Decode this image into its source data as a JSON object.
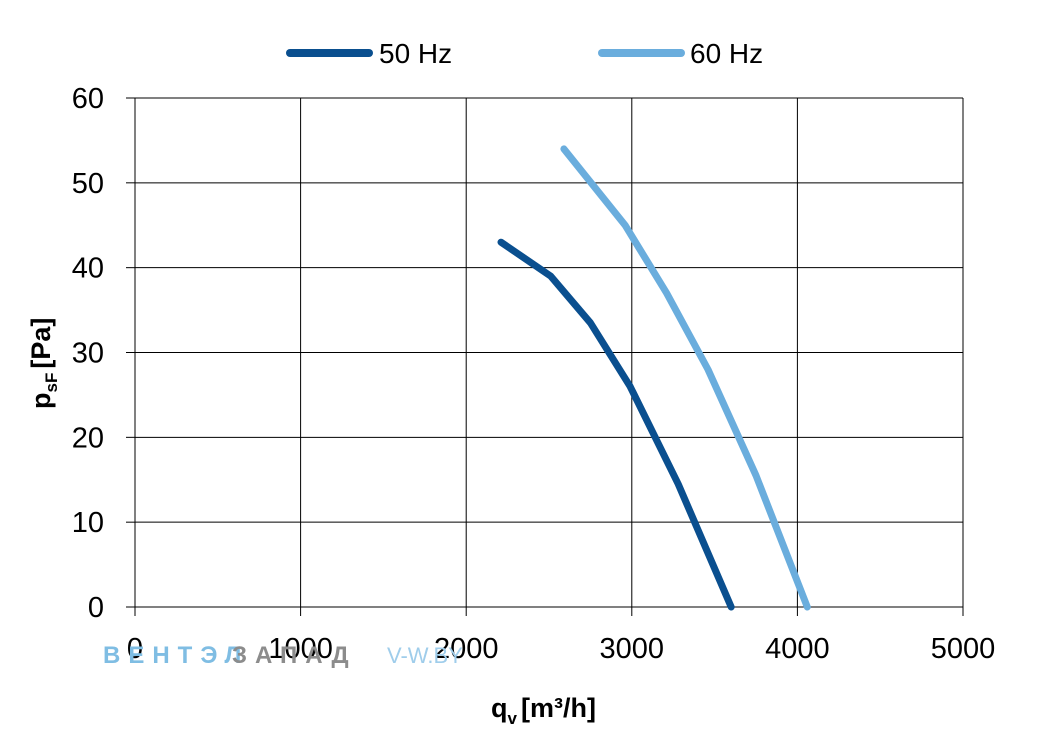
{
  "chart_data": {
    "type": "line",
    "xlabel_main": "q",
    "xlabel_sub": "v",
    "xlabel_unit": "[m³/h]",
    "ylabel_main": "p",
    "ylabel_sub": "sF",
    "ylabel_unit": "[Pa]",
    "xlim": [
      0,
      5000
    ],
    "ylim": [
      0,
      60
    ],
    "xticks": [
      0,
      1000,
      2000,
      3000,
      4000,
      5000
    ],
    "yticks": [
      0,
      10,
      20,
      30,
      40,
      50,
      60
    ],
    "grid": true,
    "legend_position": "top",
    "series": [
      {
        "name": "50 Hz",
        "color": "#0a4f8f",
        "points": [
          [
            2210,
            43
          ],
          [
            2510,
            39
          ],
          [
            2750,
            33.5
          ],
          [
            2990,
            26
          ],
          [
            3280,
            14.5
          ],
          [
            3600,
            0
          ]
        ]
      },
      {
        "name": "60 Hz",
        "color": "#6aaddd",
        "points": [
          [
            2590,
            54
          ],
          [
            2960,
            45
          ],
          [
            3210,
            37
          ],
          [
            3460,
            28
          ],
          [
            3750,
            15.5
          ],
          [
            4060,
            0
          ]
        ]
      }
    ]
  },
  "watermark": {
    "part1": "ВЕНТЭЛ",
    "part2": "ЗАПАД",
    "part3": "V-W.BY"
  }
}
